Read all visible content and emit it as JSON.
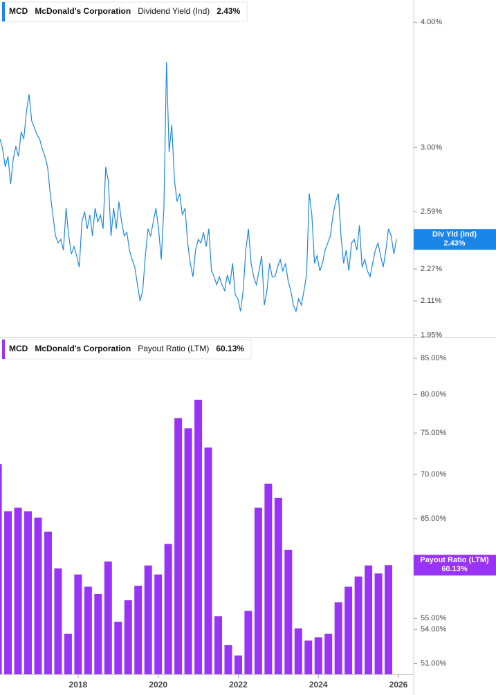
{
  "chart_data": [
    {
      "type": "line",
      "ticker": "MCD",
      "company": "McDonald's Corporation",
      "log_scale": true,
      "xlim": [
        2016.05,
        2026.38
      ],
      "ylim": [
        1.94,
        4.21
      ],
      "yticks": [
        {
          "value": 4.0,
          "label": "4.00%"
        },
        {
          "value": 3.0,
          "label": "3.00%"
        },
        {
          "value": 2.59,
          "label": "2.59%"
        },
        {
          "value": 2.27,
          "label": "2.27%"
        },
        {
          "value": 2.11,
          "label": "2.11%"
        },
        {
          "value": 1.95,
          "label": "1.95%"
        }
      ],
      "series": [
        {
          "name": "Dividend Yield (Ind)",
          "short_name": "Div Yld (Ind)",
          "color": "#1c86e8",
          "last_value_label": "2.43%",
          "x": [
            2016.05,
            2016.116,
            2016.182,
            2016.248,
            2016.314,
            2016.38,
            2016.446,
            2016.512,
            2016.578,
            2016.644,
            2016.71,
            2016.776,
            2016.842,
            2016.908,
            2016.974,
            2017.04,
            2017.106,
            2017.172,
            2017.238,
            2017.304,
            2017.37,
            2017.436,
            2017.502,
            2017.568,
            2017.634,
            2017.7,
            2017.766,
            2017.832,
            2017.898,
            2017.964,
            2018.03,
            2018.096,
            2018.162,
            2018.228,
            2018.294,
            2018.36,
            2018.426,
            2018.492,
            2018.558,
            2018.624,
            2018.69,
            2018.756,
            2018.822,
            2018.888,
            2018.954,
            2019.02,
            2019.086,
            2019.152,
            2019.218,
            2019.284,
            2019.35,
            2019.416,
            2019.482,
            2019.548,
            2019.614,
            2019.68,
            2019.746,
            2019.812,
            2019.878,
            2019.944,
            2020.01,
            2020.076,
            2020.142,
            2020.208,
            2020.274,
            2020.34,
            2020.406,
            2020.472,
            2020.538,
            2020.604,
            2020.67,
            2020.736,
            2020.802,
            2020.868,
            2020.934,
            2021.0,
            2021.066,
            2021.132,
            2021.198,
            2021.264,
            2021.33,
            2021.396,
            2021.462,
            2021.528,
            2021.594,
            2021.66,
            2021.726,
            2021.792,
            2021.858,
            2021.924,
            2021.99,
            2022.056,
            2022.122,
            2022.188,
            2022.254,
            2022.32,
            2022.386,
            2022.452,
            2022.518,
            2022.584,
            2022.65,
            2022.716,
            2022.782,
            2022.848,
            2022.914,
            2022.98,
            2023.046,
            2023.112,
            2023.178,
            2023.244,
            2023.31,
            2023.376,
            2023.442,
            2023.508,
            2023.574,
            2023.64,
            2023.706,
            2023.772,
            2023.838,
            2023.904,
            2023.97,
            2024.036,
            2024.102,
            2024.168,
            2024.234,
            2024.3,
            2024.366,
            2024.432,
            2024.498,
            2024.564,
            2024.63,
            2024.696,
            2024.762,
            2024.828,
            2024.894,
            2024.96,
            2025.026,
            2025.092,
            2025.158,
            2025.224,
            2025.29,
            2025.356,
            2025.422,
            2025.488,
            2025.554,
            2025.62,
            2025.686,
            2025.752,
            2025.818,
            2025.884,
            2025.95
          ],
          "values": [
            3.06,
            2.99,
            2.87,
            2.94,
            2.76,
            2.92,
            3.01,
            2.94,
            3.11,
            3.06,
            3.26,
            3.39,
            3.19,
            3.14,
            3.09,
            3.06,
            2.99,
            2.94,
            2.87,
            2.7,
            2.57,
            2.45,
            2.41,
            2.43,
            2.37,
            2.61,
            2.45,
            2.35,
            2.39,
            2.34,
            2.28,
            2.53,
            2.59,
            2.49,
            2.57,
            2.45,
            2.61,
            2.53,
            2.57,
            2.49,
            2.87,
            2.78,
            2.45,
            2.61,
            2.49,
            2.65,
            2.53,
            2.45,
            2.47,
            2.37,
            2.32,
            2.28,
            2.19,
            2.11,
            2.16,
            2.34,
            2.49,
            2.45,
            2.53,
            2.61,
            2.49,
            2.32,
            2.61,
            3.65,
            2.97,
            3.16,
            2.78,
            2.65,
            2.7,
            2.57,
            2.61,
            2.41,
            2.3,
            2.23,
            2.37,
            2.43,
            2.41,
            2.47,
            2.39,
            2.49,
            2.26,
            2.23,
            2.19,
            2.23,
            2.19,
            2.16,
            2.24,
            2.19,
            2.3,
            2.14,
            2.12,
            2.06,
            2.16,
            2.37,
            2.49,
            2.3,
            2.23,
            2.19,
            2.26,
            2.34,
            2.09,
            2.16,
            2.3,
            2.23,
            2.23,
            2.28,
            2.32,
            2.26,
            2.3,
            2.21,
            2.16,
            2.09,
            2.06,
            2.12,
            2.09,
            2.16,
            2.24,
            2.7,
            2.57,
            2.3,
            2.34,
            2.26,
            2.3,
            2.37,
            2.41,
            2.45,
            2.57,
            2.65,
            2.7,
            2.45,
            2.3,
            2.37,
            2.26,
            2.41,
            2.43,
            2.37,
            2.51,
            2.28,
            2.32,
            2.26,
            2.23,
            2.3,
            2.37,
            2.41,
            2.34,
            2.28,
            2.37,
            2.49,
            2.45,
            2.35,
            2.43
          ]
        }
      ]
    },
    {
      "type": "bar",
      "ticker": "MCD",
      "company": "McDonald's Corporation",
      "log_scale": true,
      "xlim": [
        2016.05,
        2026.38
      ],
      "xticks": [
        2018,
        2020,
        2022,
        2024,
        2026
      ],
      "ylim": [
        50.1,
        87.8
      ],
      "yticks": [
        {
          "value": 85,
          "label": "85.00%"
        },
        {
          "value": 80,
          "label": "80.00%"
        },
        {
          "value": 75,
          "label": "75.00%"
        },
        {
          "value": 70,
          "label": "70.00%"
        },
        {
          "value": 65,
          "label": "65.00%"
        },
        {
          "value": 55,
          "label": "55.00%"
        },
        {
          "value": 54,
          "label": "54.00%"
        },
        {
          "value": 51,
          "label": "51.00%"
        }
      ],
      "series": [
        {
          "name": "Payout Ratio (LTM)",
          "color": "#9933f5",
          "last_value_label": "60.13%",
          "x": [
            2016.0,
            2016.25,
            2016.5,
            2016.75,
            2017.0,
            2017.25,
            2017.5,
            2017.75,
            2018.0,
            2018.25,
            2018.5,
            2018.75,
            2019.0,
            2019.25,
            2019.5,
            2019.75,
            2020.0,
            2020.25,
            2020.5,
            2020.75,
            2021.0,
            2021.25,
            2021.5,
            2021.75,
            2022.0,
            2022.25,
            2022.5,
            2022.75,
            2023.0,
            2023.25,
            2023.5,
            2023.75,
            2024.0,
            2024.25,
            2024.5,
            2024.75,
            2025.0,
            2025.25,
            2025.5,
            2025.75
          ],
          "values": [
            71.2,
            65.8,
            66.2,
            65.8,
            65.1,
            63.6,
            59.8,
            53.6,
            59.2,
            58.0,
            57.3,
            60.5,
            54.7,
            56.7,
            58.1,
            60.1,
            59.2,
            62.3,
            76.9,
            75.6,
            79.3,
            73.2,
            55.2,
            52.6,
            51.7,
            55.7,
            66.2,
            68.9,
            67.3,
            61.7,
            54.1,
            53.0,
            53.3,
            53.6,
            56.5,
            58.0,
            59.0,
            60.1,
            59.3,
            60.13
          ]
        }
      ]
    }
  ]
}
